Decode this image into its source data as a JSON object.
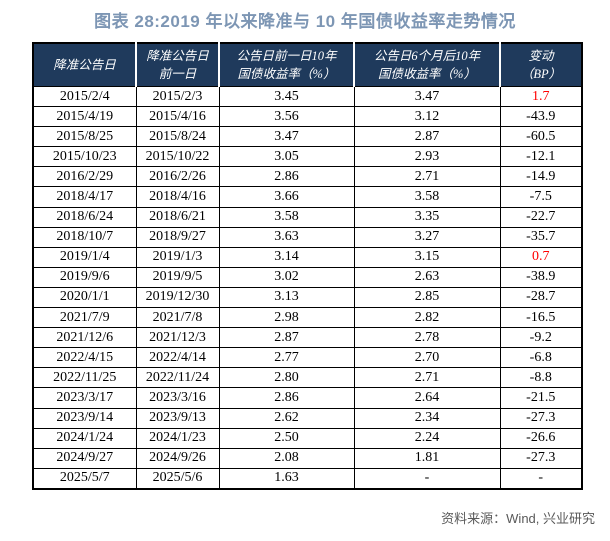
{
  "title": "图表 28:2019 年以来降准与 10 年国债收益率走势情况",
  "source": "资料来源：Wind, 兴业研究",
  "colors": {
    "header_bg": "#1F3A5C",
    "title": "#7D96B4",
    "highlight_red": "#FF0000",
    "source_text": "#595959",
    "border": "#000000"
  },
  "chart_data": {
    "type": "table",
    "title": "图表 28:2019 年以来降准与 10 年国债收益率走势情况",
    "columns": [
      {
        "lines": [
          "降准公告日"
        ]
      },
      {
        "lines": [
          "降准公告日",
          "前一日"
        ]
      },
      {
        "lines": [
          "公告日前一日10年",
          "国债收益率（%）"
        ]
      },
      {
        "lines": [
          "公告日6个月后10年",
          "国债收益率（%）"
        ]
      },
      {
        "lines": [
          "变动",
          "（BP）"
        ]
      }
    ],
    "rows": [
      {
        "cells": [
          "2015/2/4",
          "2015/2/3",
          "3.45",
          "3.47",
          "1.7"
        ],
        "change_red": true
      },
      {
        "cells": [
          "2015/4/19",
          "2015/4/16",
          "3.56",
          "3.12",
          "-43.9"
        ],
        "change_red": false
      },
      {
        "cells": [
          "2015/8/25",
          "2015/8/24",
          "3.47",
          "2.87",
          "-60.5"
        ],
        "change_red": false
      },
      {
        "cells": [
          "2015/10/23",
          "2015/10/22",
          "3.05",
          "2.93",
          "-12.1"
        ],
        "change_red": false
      },
      {
        "cells": [
          "2016/2/29",
          "2016/2/26",
          "2.86",
          "2.71",
          "-14.9"
        ],
        "change_red": false
      },
      {
        "cells": [
          "2018/4/17",
          "2018/4/16",
          "3.66",
          "3.58",
          "-7.5"
        ],
        "change_red": false
      },
      {
        "cells": [
          "2018/6/24",
          "2018/6/21",
          "3.58",
          "3.35",
          "-22.7"
        ],
        "change_red": false
      },
      {
        "cells": [
          "2018/10/7",
          "2018/9/27",
          "3.63",
          "3.27",
          "-35.7"
        ],
        "change_red": false
      },
      {
        "cells": [
          "2019/1/4",
          "2019/1/3",
          "3.14",
          "3.15",
          "0.7"
        ],
        "change_red": true
      },
      {
        "cells": [
          "2019/9/6",
          "2019/9/5",
          "3.02",
          "2.63",
          "-38.9"
        ],
        "change_red": false
      },
      {
        "cells": [
          "2020/1/1",
          "2019/12/30",
          "3.13",
          "2.85",
          "-28.7"
        ],
        "change_red": false
      },
      {
        "cells": [
          "2021/7/9",
          "2021/7/8",
          "2.98",
          "2.82",
          "-16.5"
        ],
        "change_red": false
      },
      {
        "cells": [
          "2021/12/6",
          "2021/12/3",
          "2.87",
          "2.78",
          "-9.2"
        ],
        "change_red": false
      },
      {
        "cells": [
          "2022/4/15",
          "2022/4/14",
          "2.77",
          "2.70",
          "-6.8"
        ],
        "change_red": false
      },
      {
        "cells": [
          "2022/11/25",
          "2022/11/24",
          "2.80",
          "2.71",
          "-8.8"
        ],
        "change_red": false
      },
      {
        "cells": [
          "2023/3/17",
          "2023/3/16",
          "2.86",
          "2.64",
          "-21.5"
        ],
        "change_red": false
      },
      {
        "cells": [
          "2023/9/14",
          "2023/9/13",
          "2.62",
          "2.34",
          "-27.3"
        ],
        "change_red": false
      },
      {
        "cells": [
          "2024/1/24",
          "2024/1/23",
          "2.50",
          "2.24",
          "-26.6"
        ],
        "change_red": false
      },
      {
        "cells": [
          "2024/9/27",
          "2024/9/26",
          "2.08",
          "1.81",
          "-27.3"
        ],
        "change_red": false
      },
      {
        "cells": [
          "2025/5/7",
          "2025/5/6",
          "1.63",
          "-",
          "-"
        ],
        "change_red": false
      }
    ]
  }
}
